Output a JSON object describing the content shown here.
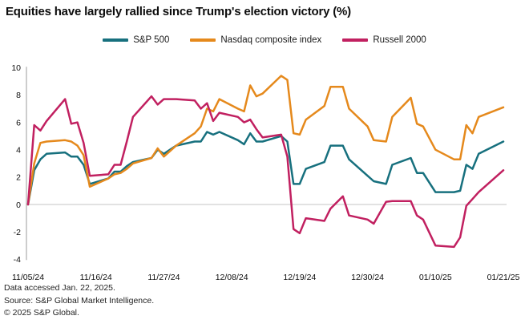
{
  "title": "Equities have largely rallied since Trump's election victory (%)",
  "footer": {
    "accessed": "Data accessed Jan. 22, 2025.",
    "source": "Source: S&P Global Market Intelligence.",
    "copyright": "© 2025 S&P Global."
  },
  "chart_data": {
    "type": "line",
    "title": "Equities have largely rallied since Trump's election victory (%)",
    "xlabel": "",
    "ylabel": "",
    "ylim": [
      -4,
      10
    ],
    "grid": "zero-line only",
    "legend_position": "top-center",
    "y_ticks": [
      10,
      8,
      6,
      4,
      2,
      0,
      -2,
      -4
    ],
    "x_tick_labels": [
      "11/05/24",
      "11/16/24",
      "11/27/24",
      "12/08/24",
      "12/19/24",
      "12/30/24",
      "01/10/25",
      "01/21/25"
    ],
    "x_tick_days": [
      0,
      11,
      22,
      33,
      44,
      55,
      66,
      77
    ],
    "axis_color": "#9b9b9b",
    "zero_line_color": "#c6c6c6",
    "dates": [
      "11/05",
      "11/06",
      "11/07",
      "11/08",
      "11/11",
      "11/12",
      "11/13",
      "11/14",
      "11/15",
      "11/18",
      "11/19",
      "11/20",
      "11/21",
      "11/22",
      "11/25",
      "11/26",
      "11/27",
      "11/29",
      "12/02",
      "12/03",
      "12/04",
      "12/05",
      "12/06",
      "12/09",
      "12/10",
      "12/11",
      "12/12",
      "12/13",
      "12/16",
      "12/17",
      "12/18",
      "12/19",
      "12/20",
      "12/23",
      "12/24",
      "12/26",
      "12/27",
      "12/30",
      "12/31",
      "01/02",
      "01/03",
      "01/06",
      "01/07",
      "01/08",
      "01/10",
      "01/13",
      "01/14",
      "01/15",
      "01/16",
      "01/17",
      "01/21"
    ],
    "day_index": [
      0,
      1,
      2,
      3,
      6,
      7,
      8,
      9,
      10,
      13,
      14,
      15,
      16,
      17,
      20,
      21,
      22,
      24,
      27,
      28,
      29,
      30,
      31,
      34,
      35,
      36,
      37,
      38,
      41,
      42,
      43,
      44,
      45,
      48,
      49,
      51,
      52,
      55,
      56,
      58,
      59,
      62,
      63,
      64,
      66,
      69,
      70,
      71,
      72,
      73,
      77
    ],
    "series": [
      {
        "name": "S&P 500",
        "key": "sp500",
        "color": "#17707e",
        "values": [
          0.0,
          2.5,
          3.3,
          3.7,
          3.8,
          3.5,
          3.5,
          2.9,
          1.5,
          1.9,
          2.4,
          2.4,
          2.8,
          3.1,
          3.4,
          4.0,
          3.7,
          4.3,
          4.6,
          4.6,
          5.3,
          5.1,
          5.3,
          4.7,
          4.4,
          5.2,
          4.6,
          4.6,
          5.0,
          4.6,
          1.5,
          1.5,
          2.6,
          3.1,
          4.3,
          4.3,
          3.3,
          2.1,
          1.7,
          1.5,
          2.9,
          3.4,
          2.3,
          2.3,
          0.9,
          0.9,
          1.0,
          2.9,
          2.6,
          3.7,
          4.6
        ]
      },
      {
        "name": "Nasdaq composite index",
        "key": "nasdaq",
        "color": "#e5891c",
        "values": [
          0.0,
          3.0,
          4.5,
          4.6,
          4.7,
          4.6,
          4.3,
          3.6,
          1.3,
          1.9,
          2.2,
          2.3,
          2.6,
          3.0,
          3.4,
          4.1,
          3.5,
          4.3,
          5.2,
          5.7,
          7.0,
          6.8,
          7.7,
          7.0,
          6.8,
          8.7,
          7.9,
          8.1,
          9.4,
          9.1,
          5.2,
          5.1,
          6.2,
          7.2,
          8.6,
          8.6,
          7.0,
          5.7,
          4.7,
          4.6,
          6.4,
          7.8,
          5.9,
          5.7,
          4.0,
          3.3,
          3.3,
          5.8,
          5.2,
          6.4,
          7.1
        ]
      },
      {
        "name": "Russell 2000",
        "key": "russell2000",
        "color": "#c12060",
        "values": [
          0.0,
          5.8,
          5.4,
          6.1,
          7.7,
          5.9,
          6.0,
          4.5,
          2.1,
          2.2,
          2.9,
          2.9,
          4.6,
          6.4,
          7.9,
          7.3,
          7.7,
          7.7,
          7.6,
          7.0,
          7.4,
          6.1,
          6.7,
          6.4,
          6.0,
          6.2,
          5.5,
          4.9,
          5.1,
          3.5,
          -1.8,
          -2.1,
          -1.0,
          -1.2,
          -0.3,
          0.6,
          -0.8,
          -1.1,
          -1.4,
          0.2,
          0.25,
          0.25,
          -0.8,
          -1.1,
          -3.0,
          -3.1,
          -2.4,
          -0.1,
          0.4,
          0.9,
          2.5
        ]
      }
    ]
  }
}
